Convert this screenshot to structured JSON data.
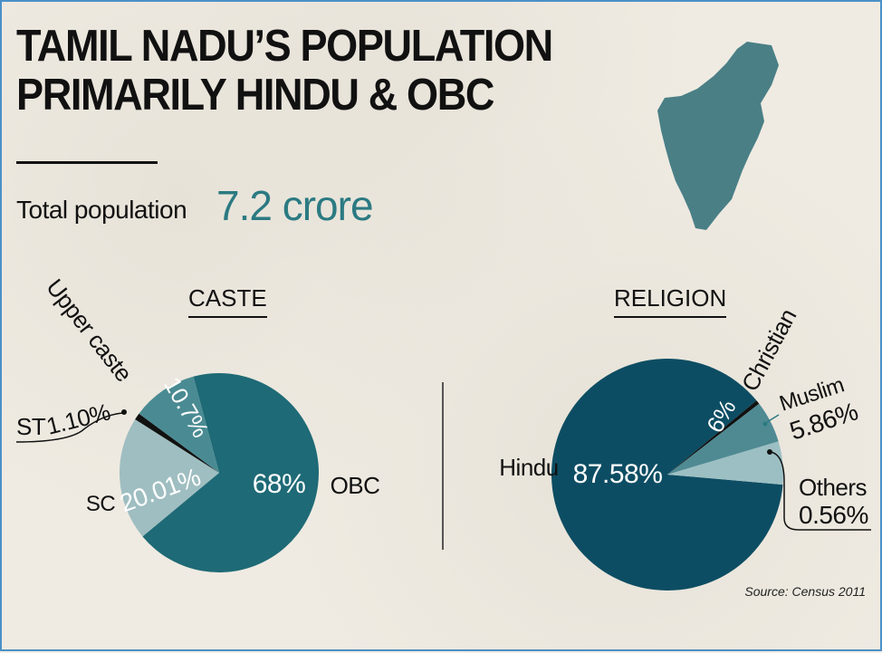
{
  "title_lines": [
    "TAMIL NADU’S POPULATION",
    "PRIMARILY HINDU & OBC"
  ],
  "total": {
    "label": "Total population",
    "value": "7.2 crore"
  },
  "source": "Source: Census 2011",
  "colors": {
    "teal_dark": "#1e6a76",
    "teal_mid": "#4a8b93",
    "teal_light": "#9fbec1",
    "hindu": "#0d4d63",
    "christian": "#9cbfc3",
    "muslim": "#4f8a93",
    "black": "#111111",
    "value_accent": "#2b7a82"
  },
  "chart_data": [
    {
      "type": "pie",
      "title": "CASTE",
      "slices": [
        {
          "label": "OBC",
          "value": 68,
          "display": "68%"
        },
        {
          "label": "SC",
          "value": 20.01,
          "display": "20.01%"
        },
        {
          "label": "ST",
          "value": 1.1,
          "display": "1.10%"
        },
        {
          "label": "Upper caste",
          "value": 10.7,
          "display": "10.7%"
        }
      ]
    },
    {
      "type": "pie",
      "title": "RELIGION",
      "slices": [
        {
          "label": "Hindu",
          "value": 87.58,
          "display": "87.58%"
        },
        {
          "label": "Others",
          "value": 0.56,
          "display": "0.56%"
        },
        {
          "label": "Muslim",
          "value": 5.86,
          "display": "5.86%"
        },
        {
          "label": "Christian",
          "value": 6,
          "display": "6%"
        }
      ]
    }
  ]
}
